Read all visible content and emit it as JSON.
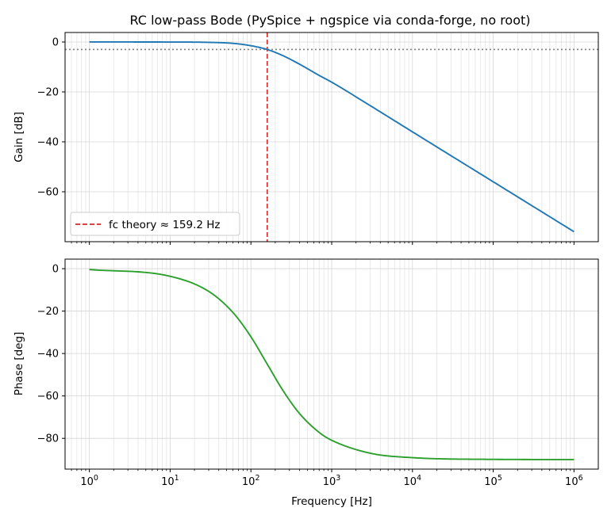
{
  "chart_data": {
    "type": "line",
    "title": "RC low-pass Bode (PySpice + ngspice via conda-forge, no root)",
    "xlabel": "Frequency [Hz]",
    "x_scale": "log",
    "xlim": [
      0.5,
      2000000
    ],
    "x_ticks": [
      {
        "base": "10",
        "exp": "0",
        "value": 1
      },
      {
        "base": "10",
        "exp": "1",
        "value": 10
      },
      {
        "base": "10",
        "exp": "2",
        "value": 100
      },
      {
        "base": "10",
        "exp": "3",
        "value": 1000
      },
      {
        "base": "10",
        "exp": "4",
        "value": 10000
      },
      {
        "base": "10",
        "exp": "5",
        "value": 100000
      },
      {
        "base": "10",
        "exp": "6",
        "value": 1000000
      }
    ],
    "grid": true,
    "panels": [
      {
        "id": "gain",
        "ylabel": "Gain [dB]",
        "ylim": [
          -80,
          3.8
        ],
        "y_ticks": [
          {
            "value": 0,
            "label": "0"
          },
          {
            "value": -20,
            "label": "−20"
          },
          {
            "value": -40,
            "label": "−40"
          },
          {
            "value": -60,
            "label": "−60"
          }
        ],
        "series": {
          "color": "#1f77b4",
          "points": [
            [
              1,
              0.0
            ],
            [
              10,
              -0.02
            ],
            [
              30,
              -0.15
            ],
            [
              60,
              -0.55
            ],
            [
              100,
              -1.5
            ],
            [
              159.2,
              -3.01
            ],
            [
              250,
              -5.5
            ],
            [
              400,
              -8.9
            ],
            [
              700,
              -13.4
            ],
            [
              1000,
              -16.1
            ],
            [
              3000,
              -25.5
            ],
            [
              10000,
              -36.0
            ],
            [
              100000,
              -56.0
            ],
            [
              1000000,
              -76.0
            ]
          ]
        },
        "reference_lines": [
          {
            "kind": "vertical",
            "x": 159.2,
            "color": "#d62728",
            "style": "dashed"
          },
          {
            "kind": "horizontal",
            "y": -3.0,
            "color": "#808080",
            "style": "dotted"
          }
        ],
        "legend": {
          "position": "lower-left",
          "entries": [
            {
              "label": "fc theory ≈ 159.2 Hz",
              "color": "#d62728",
              "style": "dashed"
            }
          ]
        }
      },
      {
        "id": "phase",
        "ylabel": "Phase [deg]",
        "ylim": [
          -94.5,
          4.5
        ],
        "y_ticks": [
          {
            "value": 0,
            "label": "0"
          },
          {
            "value": -20,
            "label": "−20"
          },
          {
            "value": -40,
            "label": "−40"
          },
          {
            "value": -60,
            "label": "−60"
          },
          {
            "value": -80,
            "label": "−80"
          }
        ],
        "series": {
          "color": "#2ca02c",
          "points": [
            [
              1,
              -0.4
            ],
            [
              10,
              -3.6
            ],
            [
              30,
              -10.7
            ],
            [
              60,
              -20.7
            ],
            [
              100,
              -32.1
            ],
            [
              159.2,
              -45.0
            ],
            [
              250,
              -57.5
            ],
            [
              400,
              -68.3
            ],
            [
              700,
              -77.2
            ],
            [
              1000,
              -80.9
            ],
            [
              3000,
              -87.0
            ],
            [
              10000,
              -89.1
            ],
            [
              100000,
              -89.9
            ],
            [
              1000000,
              -90.0
            ]
          ]
        }
      }
    ]
  }
}
